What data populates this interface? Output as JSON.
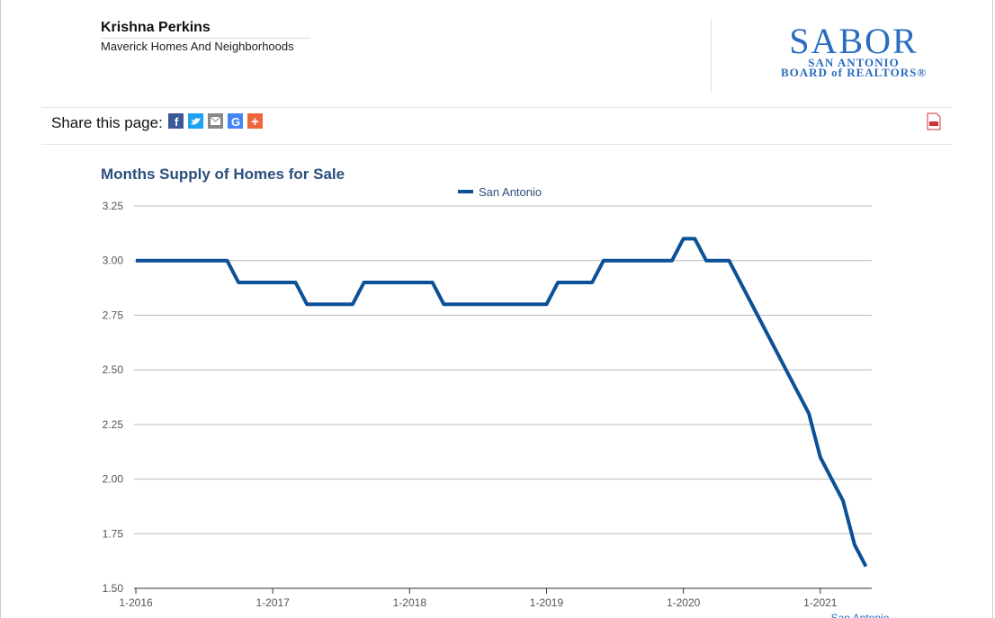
{
  "header": {
    "name": "Krishna Perkins",
    "company": "Maverick Homes And Neighborhoods",
    "logo": {
      "name": "SABOR",
      "line1": "SAN ANTONIO",
      "line2": "BOARD of REALTORS®"
    }
  },
  "share": {
    "label": "Share this page:"
  },
  "chart_data": {
    "type": "line",
    "title": "Months Supply of Homes for Sale",
    "categories": [
      "1-2016",
      null,
      null,
      null,
      null,
      null,
      null,
      null,
      null,
      null,
      null,
      null,
      "1-2017",
      null,
      null,
      null,
      null,
      null,
      null,
      null,
      null,
      null,
      null,
      null,
      "1-2018",
      null,
      null,
      null,
      null,
      null,
      null,
      null,
      null,
      null,
      null,
      null,
      "1-2019",
      null,
      null,
      null,
      null,
      null,
      null,
      null,
      null,
      null,
      null,
      null,
      "1-2020",
      null,
      null,
      null,
      null,
      null,
      null,
      null,
      null,
      null,
      null,
      null,
      "1-2021",
      null,
      null,
      null,
      null
    ],
    "series": [
      {
        "name": "San Antonio",
        "color": "#0b5196",
        "values": [
          3.0,
          3.0,
          3.0,
          3.0,
          3.0,
          3.0,
          3.0,
          3.0,
          3.0,
          2.9,
          2.9,
          2.9,
          2.9,
          2.9,
          2.9,
          2.8,
          2.8,
          2.8,
          2.8,
          2.8,
          2.9,
          2.9,
          2.9,
          2.9,
          2.9,
          2.9,
          2.9,
          2.8,
          2.8,
          2.8,
          2.8,
          2.8,
          2.8,
          2.8,
          2.8,
          2.8,
          2.8,
          2.9,
          2.9,
          2.9,
          2.9,
          3.0,
          3.0,
          3.0,
          3.0,
          3.0,
          3.0,
          3.0,
          3.1,
          3.1,
          3.0,
          3.0,
          3.0,
          2.9,
          2.8,
          2.7,
          2.6,
          2.5,
          2.4,
          2.3,
          2.1,
          2.0,
          1.9,
          1.7,
          1.6
        ]
      }
    ],
    "ylim": [
      1.5,
      3.25
    ],
    "yticks": [
      {
        "value": 1.5,
        "label": "1.50"
      },
      1.75,
      {
        "value": 2,
        "label": "2.00"
      },
      2.25,
      {
        "value": 2.5,
        "label": "2.50"
      },
      2.75,
      {
        "value": 3,
        "label": "3.00"
      },
      3.25
    ],
    "grid": true,
    "legend": "top"
  }
}
